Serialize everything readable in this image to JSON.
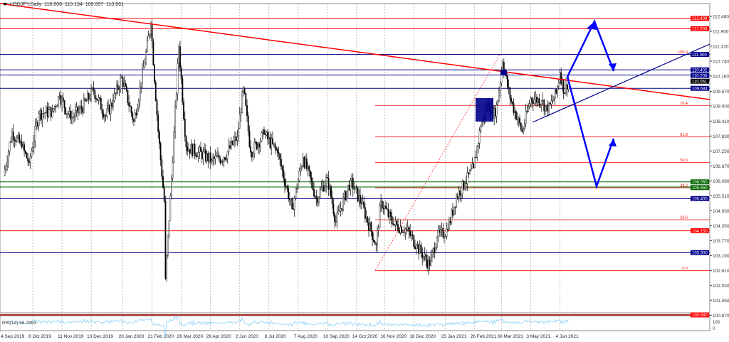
{
  "header": {
    "symbol": "USDJPY,Daily",
    "open": "110.008",
    "high": "110.134",
    "low": "109.997",
    "close": "110.061"
  },
  "rsi": {
    "label": "RSI(14) 58.7893",
    "axis": [
      "100",
      "0"
    ]
  },
  "chart_data": {
    "type": "candlestick",
    "ylim": [
      100.87,
      113.48
    ],
    "price_ticks": [
      "112.480",
      "111.900",
      "111.320",
      "110.740",
      "110.160",
      "109.570",
      "109.000",
      "108.410",
      "107.830",
      "107.250",
      "106.670",
      "106.090",
      "105.510",
      "104.930",
      "104.350",
      "103.770",
      "103.190",
      "102.610",
      "102.030",
      "101.450",
      "100.870"
    ],
    "date_ticks": [
      "4 Sep 2019",
      "8 Oct 2019",
      "11 Nov 2019",
      "13 Dec 2019",
      "20 Jan 2020",
      "21 Feb 2020",
      "26 Mar 2020",
      "29 Apr 2020",
      "2 Jun 2020",
      "6 Jul 2020",
      "7 Aug 2020",
      "10 Sep 2020",
      "14 Oct 2020",
      "16 Nov 2020",
      "18 Dec 2020",
      "25 Jan 2021",
      "26 Feb 2021",
      "30 Mar 2021",
      "3 May 2021",
      "4 Jun 2021"
    ],
    "close_path": [
      [
        "2019-09-04",
        106.3
      ],
      [
        "2019-09-13",
        108.0
      ],
      [
        "2019-09-25",
        107.4
      ],
      [
        "2019-10-03",
        106.8
      ],
      [
        "2019-10-15",
        108.7
      ],
      [
        "2019-10-30",
        108.8
      ],
      [
        "2019-11-07",
        109.4
      ],
      [
        "2019-11-20",
        108.5
      ],
      [
        "2019-12-03",
        108.9
      ],
      [
        "2019-12-17",
        109.6
      ],
      [
        "2019-12-31",
        108.6
      ],
      [
        "2020-01-08",
        109.2
      ],
      [
        "2020-01-17",
        110.1
      ],
      [
        "2020-01-31",
        108.4
      ],
      [
        "2020-02-10",
        109.9
      ],
      [
        "2020-02-20",
        112.2
      ],
      [
        "2020-02-28",
        108.0
      ],
      [
        "2020-03-06",
        105.3
      ],
      [
        "2020-03-09",
        102.3
      ],
      [
        "2020-03-16",
        106.2
      ],
      [
        "2020-03-24",
        111.3
      ],
      [
        "2020-04-01",
        107.4
      ],
      [
        "2020-04-15",
        107.2
      ],
      [
        "2020-04-30",
        106.9
      ],
      [
        "2020-05-14",
        107.0
      ],
      [
        "2020-05-29",
        107.8
      ],
      [
        "2020-06-05",
        109.7
      ],
      [
        "2020-06-15",
        107.2
      ],
      [
        "2020-06-30",
        107.9
      ],
      [
        "2020-07-15",
        107.2
      ],
      [
        "2020-07-31",
        105.0
      ],
      [
        "2020-08-13",
        107.0
      ],
      [
        "2020-08-28",
        105.4
      ],
      [
        "2020-09-10",
        106.2
      ],
      [
        "2020-09-21",
        104.5
      ],
      [
        "2020-10-07",
        106.1
      ],
      [
        "2020-10-20",
        105.2
      ],
      [
        "2020-11-05",
        103.6
      ],
      [
        "2020-11-11",
        105.3
      ],
      [
        "2020-11-25",
        104.4
      ],
      [
        "2020-12-10",
        104.2
      ],
      [
        "2020-12-22",
        103.6
      ],
      [
        "2021-01-06",
        102.8
      ],
      [
        "2021-01-14",
        103.9
      ],
      [
        "2021-01-27",
        104.2
      ],
      [
        "2021-02-05",
        105.5
      ],
      [
        "2021-02-16",
        106.0
      ],
      [
        "2021-02-25",
        106.6
      ],
      [
        "2021-03-05",
        108.2
      ],
      [
        "2021-03-15",
        109.1
      ],
      [
        "2021-03-23",
        108.6
      ],
      [
        "2021-03-31",
        110.7
      ],
      [
        "2021-04-08",
        109.3
      ],
      [
        "2021-04-22",
        108.0
      ],
      [
        "2021-05-03",
        109.3
      ],
      [
        "2021-05-14",
        109.2
      ],
      [
        "2021-05-21",
        108.8
      ],
      [
        "2021-06-01",
        109.5
      ],
      [
        "2021-06-04",
        110.3
      ],
      [
        "2021-06-10",
        109.5
      ],
      [
        "2021-06-15",
        110.06
      ]
    ]
  },
  "levels": [
    {
      "price": 112.4,
      "label": "112.400",
      "color": "#ff0000"
    },
    {
      "price": 112.0,
      "label": "112.000",
      "color": "#ff0000"
    },
    {
      "price": 111.0,
      "label": "111.000",
      "color": "#00008b"
    },
    {
      "price": 110.402,
      "label": "110.402",
      "color": "#00008b"
    },
    {
      "price": 110.2,
      "label": "110.200",
      "color": "#00008b"
    },
    {
      "price": 109.684,
      "label": "109.684",
      "color": "#00008b"
    },
    {
      "price": 106.05,
      "label": "106.050",
      "color": "#006400"
    },
    {
      "price": 105.85,
      "label": "105.850",
      "color": "#006400"
    },
    {
      "price": 105.4,
      "label": "105.400",
      "color": "#00008b"
    },
    {
      "price": 104.15,
      "label": "104.150",
      "color": "#ff0000"
    },
    {
      "price": 103.3,
      "label": "103.300",
      "color": "#00008b"
    },
    {
      "price": 100.88,
      "label": "100.880",
      "color": "#ff0000"
    }
  ],
  "current_price": "110.061",
  "fibonacci": [
    {
      "price": 111.0,
      "label": "100.0"
    },
    {
      "price": 109.02,
      "label": "76.4"
    },
    {
      "price": 107.8,
      "label": "61.8"
    },
    {
      "price": 106.8,
      "label": "50.0"
    },
    {
      "price": 105.82,
      "label": "38.2"
    },
    {
      "price": 104.58,
      "label": "23.6"
    },
    {
      "price": 102.6,
      "label": "0.0"
    }
  ],
  "colors": {
    "up": "#000000",
    "grid": "#c0c0c0",
    "fib": "#ff0000",
    "trend_red": "#ff0000",
    "trend_blue": "#00008b",
    "arrow": "#0000ff",
    "rsi": "#87cefa"
  }
}
